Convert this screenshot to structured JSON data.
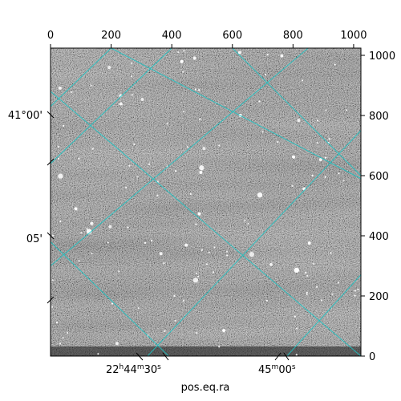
{
  "chart_data": {
    "type": "heatmap",
    "title": "",
    "xlabel": "pos.eq.ra",
    "ylabel": "",
    "xlim": [
      0,
      1024
    ],
    "ylim": [
      0,
      1024
    ],
    "colormap": "gray",
    "grid": true,
    "grid_color": "#19c5c5",
    "x_ticks_top": [
      0,
      200,
      400,
      600,
      800,
      1000
    ],
    "y_ticks_right": [
      0,
      200,
      400,
      600,
      800,
      1000
    ],
    "ra_tick_labels": [
      {
        "label_parts": [
          "22",
          "h",
          "44",
          "m",
          "30",
          "s"
        ]
      },
      {
        "label_parts": [
          "45",
          "m",
          "00",
          "s"
        ]
      }
    ],
    "dec_tick_labels": [
      "41°00'",
      "05'"
    ]
  }
}
